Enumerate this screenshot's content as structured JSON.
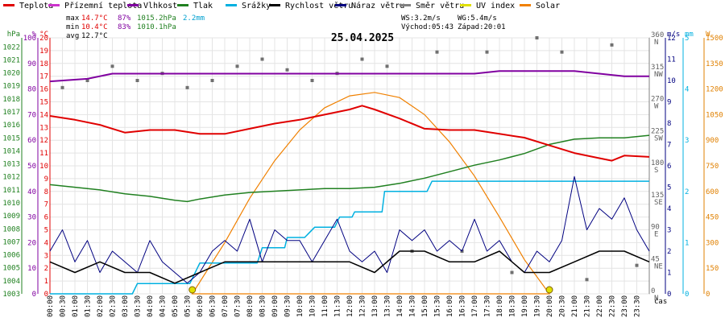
{
  "legend": [
    {
      "label": "Teplota",
      "color": "#e00000"
    },
    {
      "label": "Přízemní teplota",
      "color": "#cc33cc"
    },
    {
      "label": "Vlhkost",
      "color": "#8000a0"
    },
    {
      "label": "Tlak",
      "color": "#208020"
    },
    {
      "label": "Srážky",
      "color": "#00b0e0"
    },
    {
      "label": "Rychlost větru",
      "color": "#000000"
    },
    {
      "label": "Náraz větru",
      "color": "#000080"
    },
    {
      "label": "Směr větru",
      "color": "#808080"
    },
    {
      "label": "UV index",
      "color": "#e0e000"
    },
    {
      "label": "Solar",
      "color": "#f08000"
    }
  ],
  "stats": {
    "max_label": "max",
    "max_temp": "14.7°C",
    "max_hum": "87%",
    "max_press": "1015.2hPa",
    "max_rain": "2.2mm",
    "min_label": "min",
    "min_temp": "10.4°C",
    "min_hum": "83%",
    "min_press": "1010.1hPa",
    "avg_label": "avg",
    "avg_temp": "12.7°C",
    "ws": "WS:3.2m/s",
    "wg": "WG:5.4m/s",
    "sunrise": "Východ:05:43",
    "sunset": "Západ:20:01"
  },
  "date": "25.04.2025",
  "time_axis_label": "čas",
  "colors": {
    "temp": "#e00000",
    "hum": "#8000a0",
    "press": "#208020",
    "rain": "#00b0e0",
    "wind": "#000000",
    "gust": "#000080",
    "dir": "#707070",
    "uv": "#e0e000",
    "solar": "#f08000",
    "grid": "#e4e4e4"
  },
  "axes": {
    "hpa": {
      "title": "hPa",
      "ticks": [
        "1003",
        "1004",
        "1005",
        "1006",
        "1007",
        "1008",
        "1009",
        "1010",
        "1011",
        "1012",
        "1013",
        "1014",
        "1015",
        "1016",
        "1017",
        "1018",
        "1019",
        "1020",
        "1021",
        "1022"
      ],
      "range": [
        1003,
        1022.7
      ]
    },
    "pct": {
      "title": "%",
      "ticks": [
        "0",
        "10",
        "20",
        "30",
        "40",
        "50",
        "60",
        "70",
        "80",
        "90",
        "100"
      ],
      "range": [
        0,
        100
      ]
    },
    "degc": {
      "title": "°C",
      "ticks": [
        "0",
        "1",
        "2",
        "3",
        "4",
        "5",
        "6",
        "7",
        "8",
        "9",
        "10",
        "11",
        "12",
        "13",
        "14",
        "15",
        "16",
        "17",
        "18",
        "19",
        "20"
      ],
      "range": [
        0,
        20
      ]
    },
    "dir": {
      "ticks": [
        "0 N",
        "45 NE",
        "90 E",
        "135 SE",
        "180 S",
        "225 SW",
        "270 W",
        "315 NW",
        "360 N"
      ],
      "range": [
        0,
        360
      ]
    },
    "ms": {
      "title": "m/s",
      "ticks": [
        "0",
        "1",
        "2",
        "3",
        "4",
        "5",
        "6",
        "7",
        "8",
        "9",
        "10",
        "11",
        "12"
      ],
      "range": [
        0,
        12
      ]
    },
    "mm": {
      "title": "mm",
      "ticks": [
        "0",
        "1",
        "2",
        "3",
        "4",
        "5"
      ],
      "range": [
        0,
        5
      ]
    },
    "w": {
      "title": "W",
      "ticks": [
        "0",
        "150",
        "300",
        "450",
        "600",
        "750",
        "900",
        "1050",
        "1200",
        "1350",
        "1500"
      ],
      "range": [
        0,
        1500
      ]
    }
  },
  "chart_data": {
    "type": "line",
    "title": "25.04.2025",
    "xlabel": "čas",
    "x_range_hours": [
      0,
      24
    ],
    "time_ticks": [
      "00:00",
      "00:30",
      "01:00",
      "01:30",
      "02:00",
      "02:30",
      "03:00",
      "03:30",
      "04:00",
      "04:30",
      "05:00",
      "05:30",
      "06:00",
      "06:30",
      "07:00",
      "07:30",
      "08:00",
      "08:30",
      "09:00",
      "09:30",
      "10:00",
      "10:30",
      "11:00",
      "11:30",
      "12:00",
      "12:30",
      "13:00",
      "13:30",
      "14:00",
      "14:30",
      "15:00",
      "15:30",
      "16:00",
      "16:30",
      "17:00",
      "17:30",
      "18:00",
      "18:30",
      "19:00",
      "19:30",
      "20:00",
      "20:30",
      "21:00",
      "21:30",
      "22:00",
      "22:30",
      "23:00",
      "23:30"
    ],
    "series": [
      {
        "name": "Teplota",
        "unit": "°C",
        "x_hours": [
          0,
          1,
          2,
          3,
          4,
          5,
          6,
          7,
          8,
          9,
          10,
          11,
          12,
          12.5,
          13,
          14,
          15,
          16,
          17,
          18,
          19,
          20,
          21,
          22,
          22.5,
          23,
          24
        ],
        "values": [
          13.9,
          13.6,
          13.2,
          12.6,
          12.8,
          12.8,
          12.5,
          12.5,
          12.9,
          13.3,
          13.6,
          14.0,
          14.4,
          14.7,
          14.4,
          13.7,
          12.9,
          12.8,
          12.8,
          12.5,
          12.2,
          11.6,
          11.0,
          10.6,
          10.4,
          10.8,
          10.7
        ]
      },
      {
        "name": "Vlhkost",
        "unit": "%",
        "x_hours": [
          0,
          1.5,
          2.5,
          6,
          12,
          17,
          18,
          21,
          22,
          23,
          24
        ],
        "values": [
          83,
          84,
          86,
          86,
          86,
          86,
          87,
          87,
          86,
          85,
          85
        ]
      },
      {
        "name": "Tlak",
        "unit": "hPa",
        "x_hours": [
          0,
          1,
          2,
          3,
          4,
          5,
          5.5,
          6,
          7,
          8,
          9,
          10,
          11,
          12,
          13,
          14,
          15,
          16,
          17,
          18,
          19,
          20,
          21,
          22,
          23,
          24
        ],
        "values": [
          1011.4,
          1011.2,
          1011.0,
          1010.7,
          1010.5,
          1010.2,
          1010.1,
          1010.3,
          1010.6,
          1010.8,
          1010.9,
          1011.0,
          1011.1,
          1011.1,
          1011.2,
          1011.5,
          1011.9,
          1012.4,
          1012.9,
          1013.3,
          1013.8,
          1014.5,
          1014.9,
          1015.0,
          1015.0,
          1015.2
        ]
      },
      {
        "name": "Srážky",
        "unit": "mm",
        "x_hours": [
          0,
          2.5,
          3.3,
          3.5,
          5.6,
          6,
          8.3,
          8.5,
          9.4,
          9.5,
          10.2,
          10.6,
          11.4,
          11.6,
          12.1,
          12.2,
          13.3,
          13.4,
          15.1,
          15.3,
          24
        ],
        "values": [
          0,
          0,
          0,
          0.2,
          0.2,
          0.6,
          0.6,
          0.9,
          0.9,
          1.1,
          1.1,
          1.3,
          1.3,
          1.5,
          1.5,
          1.6,
          1.6,
          2.0,
          2.0,
          2.2,
          2.2
        ]
      },
      {
        "name": "Rychlost větru",
        "unit": "m/s",
        "x_hours": [
          0,
          1,
          2,
          3,
          4,
          5,
          6,
          7,
          8,
          9,
          10,
          11,
          12,
          13,
          14,
          15,
          16,
          17,
          18,
          19,
          20,
          21,
          22,
          23,
          24
        ],
        "values": [
          1.5,
          1.0,
          1.5,
          1.0,
          1.0,
          0.5,
          1.0,
          1.5,
          1.5,
          1.5,
          1.5,
          1.5,
          1.5,
          1.0,
          2.0,
          2.0,
          1.5,
          1.5,
          2.0,
          1.0,
          1.0,
          1.5,
          2.0,
          2.0,
          1.5
        ]
      },
      {
        "name": "Náraz větru",
        "unit": "m/s",
        "x_hours": [
          0,
          0.5,
          1,
          1.5,
          2,
          2.5,
          3,
          3.5,
          4,
          4.5,
          5,
          5.5,
          6,
          6.5,
          7,
          7.5,
          8,
          8.5,
          9,
          9.5,
          10,
          10.5,
          11,
          11.5,
          12,
          12.5,
          13,
          13.5,
          14,
          14.5,
          15,
          15.5,
          16,
          16.5,
          17,
          17.5,
          18,
          18.5,
          19,
          19.5,
          20,
          20.5,
          21,
          21.5,
          22,
          22.5,
          23,
          23.5,
          24
        ],
        "values": [
          2.0,
          3.0,
          1.5,
          2.5,
          1.0,
          2.0,
          1.5,
          1.0,
          2.5,
          1.5,
          1.0,
          0.5,
          1.0,
          2.0,
          2.5,
          2.0,
          3.5,
          1.5,
          3.0,
          2.5,
          2.5,
          1.5,
          2.5,
          3.5,
          2.0,
          1.5,
          2.0,
          1.0,
          3.0,
          2.5,
          3.0,
          2.0,
          2.5,
          2.0,
          3.5,
          2.0,
          2.5,
          1.5,
          1.0,
          2.0,
          1.5,
          2.5,
          5.5,
          3.0,
          4.0,
          3.5,
          4.5,
          3.0,
          2.0
        ]
      },
      {
        "name": "Solar",
        "unit": "W",
        "x_hours": [
          5.7,
          7,
          8,
          9,
          10,
          11,
          12,
          13,
          14,
          15,
          16,
          17,
          18,
          19,
          20
        ],
        "values": [
          0,
          300,
          560,
          780,
          960,
          1090,
          1160,
          1180,
          1150,
          1050,
          890,
          690,
          450,
          200,
          0
        ]
      },
      {
        "name": "UV index",
        "unit": "W",
        "x_hours": [
          5.7,
          20
        ],
        "values": [
          0,
          0
        ]
      }
    ],
    "wind_direction": {
      "x_hours": [
        0.5,
        1.5,
        2.5,
        3.5,
        4.5,
        5.5,
        6.5,
        7.5,
        8.5,
        9.5,
        10.5,
        11.5,
        12.5,
        13.5,
        14.5,
        15.5,
        16.5,
        17.5,
        18.5,
        19.5,
        20.5,
        21.5,
        22.5,
        23.5
      ],
      "values": [
        290,
        300,
        320,
        300,
        310,
        290,
        300,
        320,
        330,
        315,
        300,
        310,
        330,
        320,
        60,
        340,
        60,
        340,
        30,
        360,
        340,
        20,
        350,
        40
      ]
    }
  }
}
